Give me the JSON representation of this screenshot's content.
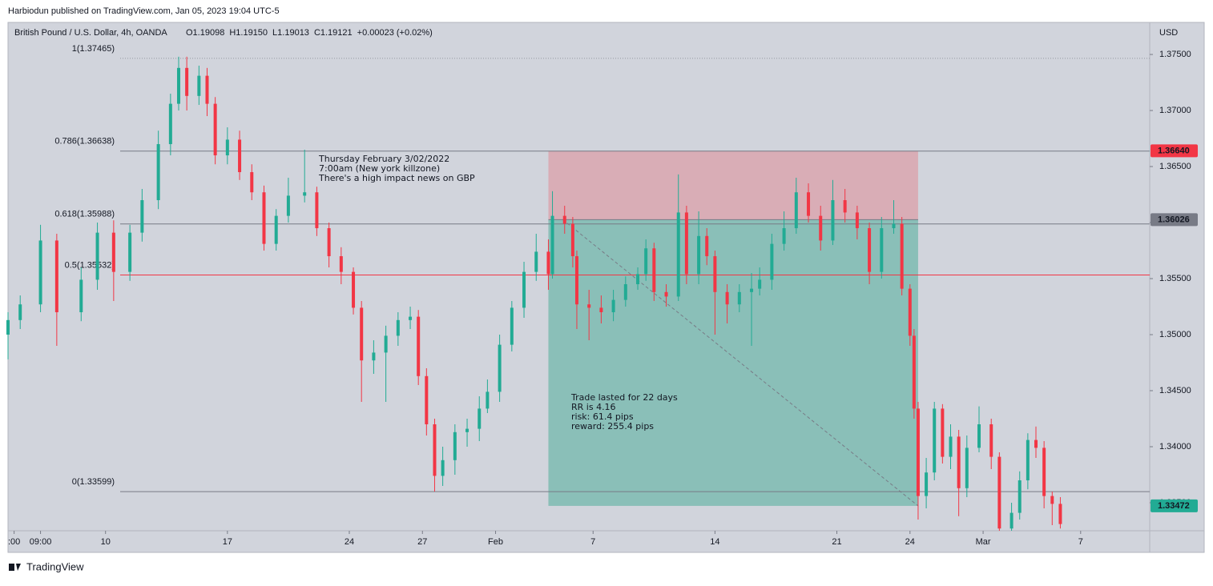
{
  "header": "Harbiodun published on TradingView.com, Jan 05, 2023 19:04 UTC-5",
  "footer": "TradingView",
  "chart_data": {
    "type": "candlestick",
    "symbol": "British Pound / U.S. Dollar, 4h, OANDA",
    "ohlc_legend": [
      "O1.19098",
      "H1.19150",
      "L1.19013",
      "C1.19121",
      "+0.00023 (+0.02%)"
    ],
    "currency": "USD",
    "up_color": "#22ab94",
    "down_color": "#f23645",
    "background": "#d1d4dc",
    "xlim": [
      0,
      281
    ],
    "xticks": [
      {
        "value": 1.5,
        "label": ":00"
      },
      {
        "value": 8,
        "label": "09:00"
      },
      {
        "value": 24,
        "label": "10"
      },
      {
        "value": 54,
        "label": "17"
      },
      {
        "value": 84,
        "label": "24"
      },
      {
        "value": 102,
        "label": "27"
      },
      {
        "value": 120,
        "label": "Feb"
      },
      {
        "value": 144,
        "label": "7"
      },
      {
        "value": 174,
        "label": "14"
      },
      {
        "value": 204,
        "label": "21"
      },
      {
        "value": 222,
        "label": "24"
      },
      {
        "value": 240,
        "label": "Mar"
      },
      {
        "value": 264,
        "label": "7"
      }
    ],
    "ylim": [
      1.3325,
      1.37786
    ],
    "yticks": [
      {
        "value": 1.375,
        "label": "1.37500"
      },
      {
        "value": 1.37,
        "label": "1.37000"
      },
      {
        "value": 1.365,
        "label": "1.36500"
      },
      {
        "value": 1.36,
        "label": "1.36000"
      },
      {
        "value": 1.355,
        "label": "1.35500"
      },
      {
        "value": 1.35,
        "label": "1.35000"
      },
      {
        "value": 1.345,
        "label": "1.34500"
      },
      {
        "value": 1.34,
        "label": "1.34000"
      },
      {
        "value": 1.335,
        "label": "1.33500"
      }
    ],
    "x": [
      0,
      3,
      8,
      12,
      18,
      22,
      26,
      30,
      33,
      37,
      40,
      42,
      44,
      47,
      49,
      51,
      54,
      57,
      60,
      63,
      66,
      69,
      73,
      76,
      79,
      82,
      85,
      87,
      90,
      93,
      96,
      99,
      101,
      103,
      105,
      107,
      110,
      113,
      116,
      118,
      121,
      124,
      127,
      130,
      133,
      134,
      137,
      139,
      140,
      143,
      146,
      149,
      152,
      155,
      157,
      159,
      162,
      165,
      167,
      170,
      172,
      174,
      177,
      180,
      183,
      185,
      188,
      191,
      194,
      197,
      200,
      203,
      206,
      209,
      212,
      215,
      218,
      220,
      222,
      223,
      224,
      226,
      228,
      230,
      232,
      234,
      236,
      239,
      242,
      244,
      247,
      249,
      251,
      253,
      255,
      257,
      259
    ],
    "open": [
      1.35,
      1.3513,
      1.3527,
      1.3584,
      1.352,
      1.3549,
      1.3591,
      1.3556,
      1.3591,
      1.362,
      1.367,
      1.3706,
      1.3738,
      1.3713,
      1.3731,
      1.3706,
      1.366,
      1.3674,
      1.3645,
      1.3627,
      1.3581,
      1.3606,
      1.3624,
      1.3627,
      1.3595,
      1.357,
      1.3556,
      1.3524,
      1.3477,
      1.3484,
      1.3499,
      1.3513,
      1.3516,
      1.3463,
      1.342,
      1.3374,
      1.3388,
      1.3413,
      1.3416,
      1.3434,
      1.3449,
      1.3491,
      1.3524,
      1.3556,
      1.3574,
      1.3554,
      1.3606,
      1.3599,
      1.357,
      1.3527,
      1.3524,
      1.352,
      1.3531,
      1.3545,
      1.3554,
      1.3577,
      1.3538,
      1.3534,
      1.3609,
      1.3554,
      1.3588,
      1.357,
      1.3538,
      1.3527,
      1.3538,
      1.3541,
      1.3549,
      1.3581,
      1.3595,
      1.3627,
      1.3606,
      1.3584,
      1.362,
      1.3609,
      1.3595,
      1.3556,
      1.3595,
      1.3599,
      1.3541,
      1.3499,
      1.3434,
      1.3356,
      1.3377,
      1.3434,
      1.3391,
      1.3409,
      1.3363,
      1.3399,
      1.342,
      1.3391,
      1.3327,
      1.3341,
      1.337,
      1.3406,
      1.3399,
      1.3356,
      1.3349
    ],
    "high": [
      1.352,
      1.3535,
      1.3598,
      1.359,
      1.356,
      1.36,
      1.3602,
      1.3598,
      1.363,
      1.3682,
      1.3715,
      1.3748,
      1.3748,
      1.374,
      1.3738,
      1.3712,
      1.3685,
      1.3682,
      1.3652,
      1.3633,
      1.3612,
      1.364,
      1.3665,
      1.3632,
      1.36,
      1.3578,
      1.356,
      1.353,
      1.3495,
      1.3508,
      1.352,
      1.3525,
      1.3522,
      1.347,
      1.3425,
      1.34,
      1.342,
      1.3425,
      1.3445,
      1.346,
      1.35,
      1.353,
      1.3565,
      1.359,
      1.3585,
      1.3628,
      1.3615,
      1.3605,
      1.3575,
      1.354,
      1.3535,
      1.354,
      1.3552,
      1.356,
      1.3585,
      1.3582,
      1.3545,
      1.3643,
      1.3615,
      1.361,
      1.3595,
      1.3575,
      1.3545,
      1.3545,
      1.3555,
      1.356,
      1.359,
      1.361,
      1.364,
      1.3635,
      1.3615,
      1.3638,
      1.363,
      1.3615,
      1.36,
      1.3605,
      1.362,
      1.3605,
      1.3545,
      1.3505,
      1.344,
      1.339,
      1.344,
      1.3438,
      1.342,
      1.3415,
      1.341,
      1.3436,
      1.3425,
      1.3395,
      1.335,
      1.3378,
      1.3412,
      1.3418,
      1.3405,
      1.336,
      1.3355
    ],
    "low": [
      1.3478,
      1.3505,
      1.352,
      1.349,
      1.3512,
      1.354,
      1.353,
      1.3548,
      1.3583,
      1.3612,
      1.366,
      1.37,
      1.37,
      1.3705,
      1.3695,
      1.3652,
      1.3652,
      1.3638,
      1.362,
      1.3575,
      1.3575,
      1.36,
      1.3618,
      1.3588,
      1.356,
      1.3545,
      1.3518,
      1.344,
      1.3465,
      1.344,
      1.349,
      1.3505,
      1.3455,
      1.341,
      1.336,
      1.3365,
      1.3375,
      1.34,
      1.3405,
      1.343,
      1.344,
      1.3485,
      1.3515,
      1.3548,
      1.354,
      1.355,
      1.359,
      1.356,
      1.3505,
      1.3495,
      1.351,
      1.3512,
      1.3525,
      1.354,
      1.3548,
      1.353,
      1.3525,
      1.353,
      1.3545,
      1.3545,
      1.3562,
      1.35,
      1.351,
      1.352,
      1.349,
      1.3535,
      1.354,
      1.3575,
      1.359,
      1.36,
      1.3575,
      1.358,
      1.36,
      1.3585,
      1.3545,
      1.355,
      1.359,
      1.3535,
      1.349,
      1.3425,
      1.3335,
      1.3345,
      1.337,
      1.3385,
      1.338,
      1.3338,
      1.3355,
      1.3395,
      1.338,
      1.3325,
      1.3325,
      1.3335,
      1.3362,
      1.339,
      1.3345,
      1.333,
      1.3327
    ],
    "close": [
      1.3513,
      1.3527,
      1.3584,
      1.352,
      1.3549,
      1.3591,
      1.3556,
      1.3591,
      1.362,
      1.367,
      1.3706,
      1.3738,
      1.3713,
      1.3731,
      1.3706,
      1.366,
      1.3674,
      1.3645,
      1.3627,
      1.3581,
      1.3606,
      1.3624,
      1.3627,
      1.3595,
      1.357,
      1.3556,
      1.3524,
      1.3477,
      1.3484,
      1.3499,
      1.3513,
      1.3516,
      1.3463,
      1.342,
      1.3374,
      1.3388,
      1.3413,
      1.3416,
      1.3434,
      1.3449,
      1.3491,
      1.3524,
      1.3556,
      1.3574,
      1.3554,
      1.3606,
      1.3599,
      1.357,
      1.3527,
      1.3524,
      1.352,
      1.3531,
      1.3545,
      1.3554,
      1.3577,
      1.3538,
      1.3534,
      1.3609,
      1.3554,
      1.3588,
      1.357,
      1.3538,
      1.3527,
      1.3538,
      1.3541,
      1.3549,
      1.3581,
      1.3595,
      1.3627,
      1.3606,
      1.3584,
      1.362,
      1.3609,
      1.3595,
      1.3556,
      1.3595,
      1.3599,
      1.3541,
      1.3499,
      1.3434,
      1.3356,
      1.3377,
      1.3434,
      1.3391,
      1.3409,
      1.3363,
      1.3399,
      1.342,
      1.3391,
      1.3327,
      1.3341,
      1.337,
      1.3406,
      1.3399,
      1.3356,
      1.3349,
      1.3331
    ],
    "fib_levels": [
      {
        "value": 1.37465,
        "label": "1(1.37465)",
        "color": "#9598a1"
      },
      {
        "value": 1.36638,
        "label": "0.786(1.36638)",
        "color": "#787b86"
      },
      {
        "value": 1.35988,
        "label": "0.618(1.35988)",
        "color": "#787b86"
      },
      {
        "value": 1.35532,
        "label": "0.5(1.35532)",
        "color": "#f23645"
      },
      {
        "value": 1.33599,
        "label": "0(1.33599)",
        "color": "#787b86"
      }
    ],
    "position": {
      "x_start": 133,
      "x_end": 224,
      "stop": 1.3664,
      "entry": 1.36026,
      "target": 1.33472,
      "stop_color": "#d9adb6",
      "target_color": "#8abfb8"
    },
    "price_labels": [
      {
        "value": 1.3664,
        "label": "1.36640",
        "color": "#f23645"
      },
      {
        "value": 1.36026,
        "label": "1.36026",
        "color": "#787b86"
      },
      {
        "value": 1.33472,
        "label": "1.33472",
        "color": "#22ab94"
      }
    ],
    "annotations": [
      [
        "Thursday February 3/02/2022",
        "7:00am (New york killzone)",
        "There's a high impact news on GBP"
      ],
      [
        "Trade lasted for 22 days",
        "RR is 4.16",
        "risk: 61.4 pips",
        "reward: 255.4 pips"
      ]
    ]
  }
}
